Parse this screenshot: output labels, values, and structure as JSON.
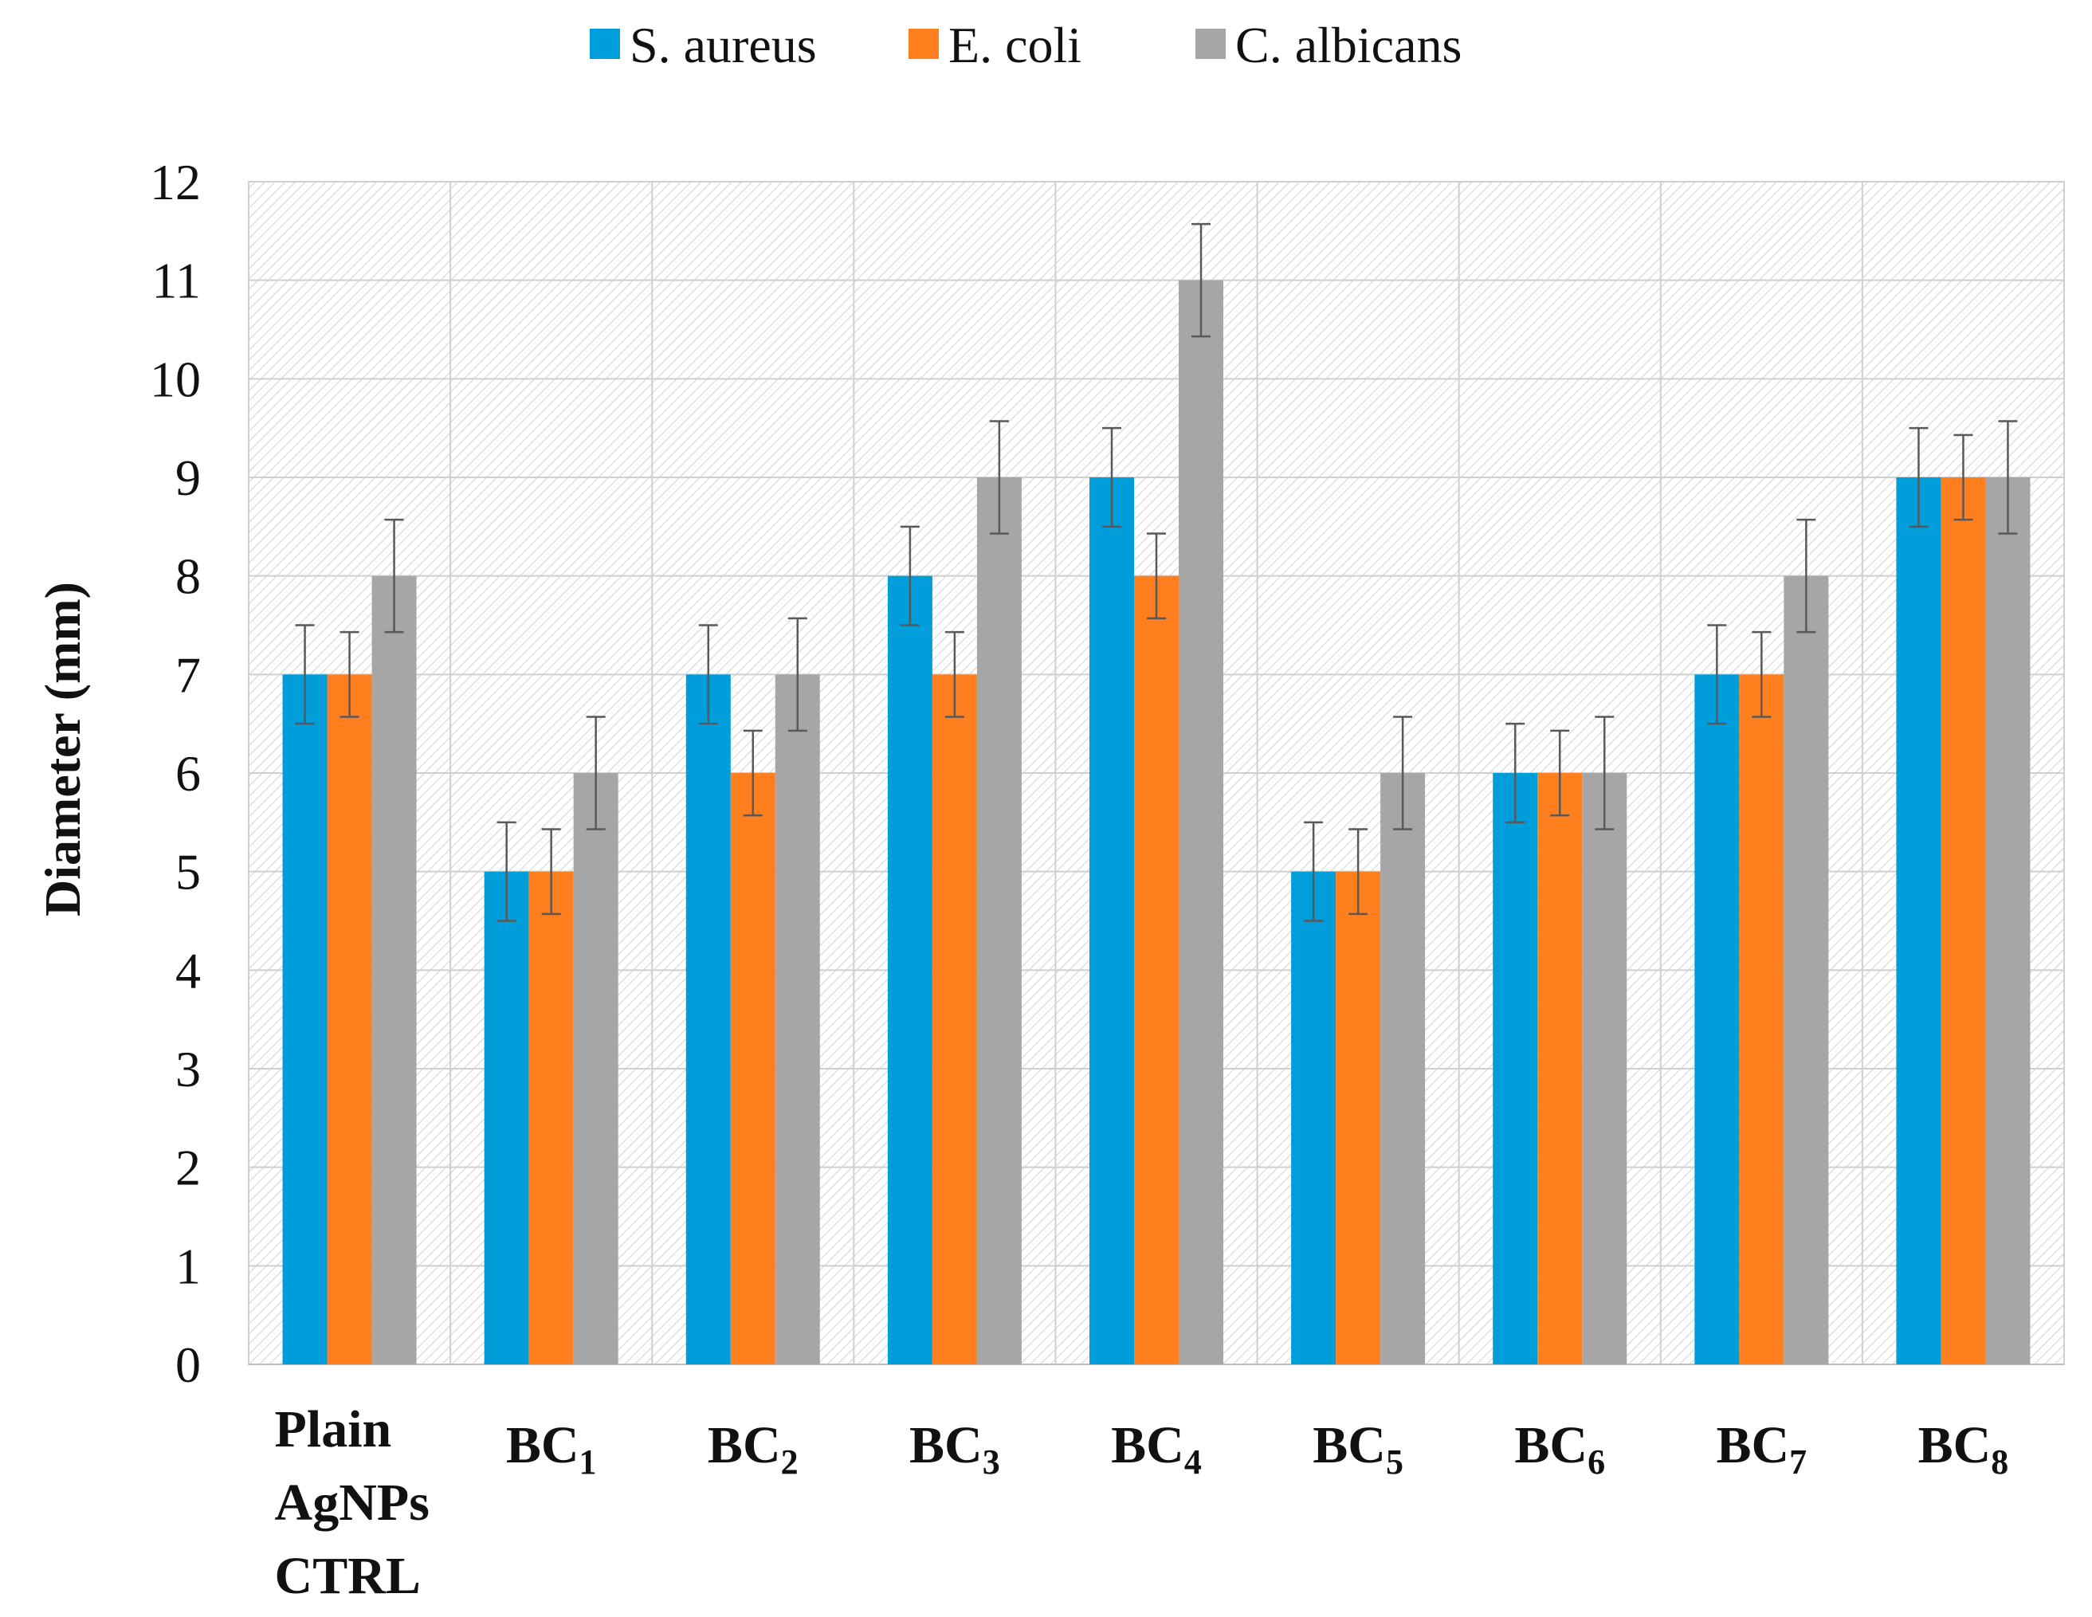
{
  "chart_data": {
    "type": "bar",
    "title": "",
    "xlabel": "",
    "ylabel": "Diameter (mm)",
    "ylim": [
      0,
      12
    ],
    "yticks": [
      0,
      1,
      2,
      3,
      4,
      5,
      6,
      7,
      8,
      9,
      10,
      11,
      12
    ],
    "grid": true,
    "legend_position": "top-center",
    "categories": [
      {
        "id": "ctrl",
        "lines": [
          "Plain",
          "AgNPs",
          "CTRL"
        ],
        "sub": ""
      },
      {
        "id": "bc1",
        "base": "BC",
        "sub": "1"
      },
      {
        "id": "bc2",
        "base": "BC",
        "sub": "2"
      },
      {
        "id": "bc3",
        "base": "BC",
        "sub": "3"
      },
      {
        "id": "bc4",
        "base": "BC",
        "sub": "4"
      },
      {
        "id": "bc5",
        "base": "BC",
        "sub": "5"
      },
      {
        "id": "bc6",
        "base": "BC",
        "sub": "6"
      },
      {
        "id": "bc7",
        "base": "BC",
        "sub": "7"
      },
      {
        "id": "bc8",
        "base": "BC",
        "sub": "8"
      }
    ],
    "series": [
      {
        "name": "S. aureus",
        "color": "#009ddb",
        "values": [
          7,
          5,
          7,
          8,
          9,
          5,
          6,
          7,
          9
        ],
        "errors": [
          0.5,
          0.5,
          0.5,
          0.5,
          0.5,
          0.5,
          0.5,
          0.5,
          0.5
        ]
      },
      {
        "name": "E. coli",
        "color": "#ff7f1e",
        "values": [
          7,
          5,
          6,
          7,
          8,
          5,
          6,
          7,
          9
        ],
        "errors": [
          0.43,
          0.43,
          0.43,
          0.43,
          0.43,
          0.43,
          0.43,
          0.43,
          0.43
        ]
      },
      {
        "name": "C. albicans",
        "color": "#a6a6a6",
        "values": [
          8,
          6,
          7,
          9,
          11,
          6,
          6,
          8,
          9
        ],
        "errors": [
          0.57,
          0.57,
          0.57,
          0.57,
          0.57,
          0.57,
          0.57,
          0.57,
          0.57
        ]
      }
    ]
  }
}
